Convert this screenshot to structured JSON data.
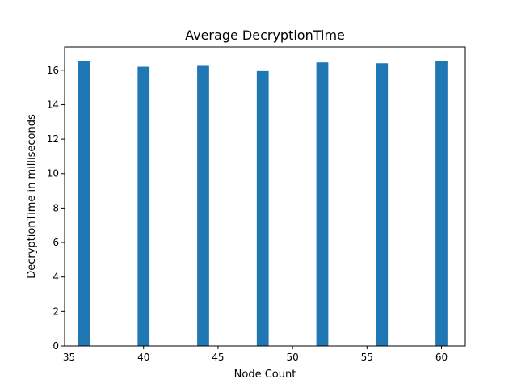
{
  "chart_data": {
    "type": "bar",
    "title": "Average DecryptionTime",
    "xlabel": "Node Count",
    "ylabel": "DecryptionTime in milliseconds",
    "x": [
      36,
      40,
      44,
      48,
      52,
      56,
      60
    ],
    "values": [
      16.55,
      16.2,
      16.25,
      15.95,
      16.45,
      16.4,
      16.55
    ],
    "xlim": [
      34.7,
      61.6
    ],
    "ylim": [
      0,
      17.35
    ],
    "xticks": [
      35,
      40,
      45,
      50,
      55,
      60
    ],
    "yticks": [
      0,
      2,
      4,
      6,
      8,
      10,
      12,
      14,
      16
    ],
    "bar_width": 0.8,
    "bar_color": "#1f77b4",
    "grid": false,
    "legend": "none"
  }
}
